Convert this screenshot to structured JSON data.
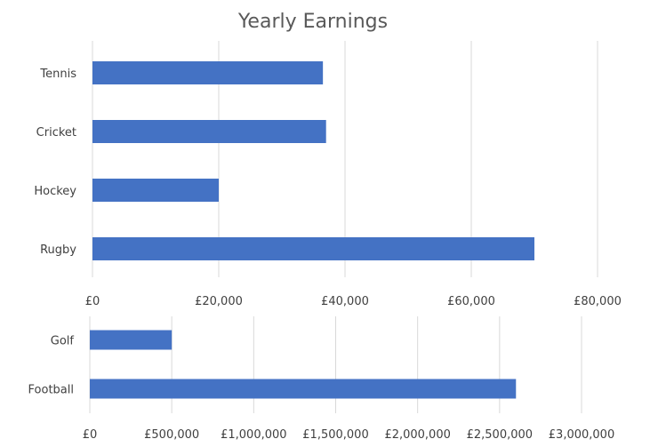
{
  "chart_data": {
    "title": "Yearly Earnings",
    "bar_color": "#4472C4",
    "grid_color": "#d9d9d9",
    "panels": [
      {
        "type": "bar",
        "orientation": "horizontal",
        "categories": [
          "Tennis",
          "Cricket",
          "Hockey",
          "Rugby"
        ],
        "values": [
          36500,
          37000,
          20000,
          70000
        ],
        "xlim": [
          0,
          80000
        ],
        "xticks": [
          0,
          20000,
          40000,
          60000,
          80000
        ],
        "xtick_labels": [
          "£0",
          "£20,000",
          "£40,000",
          "£60,000",
          "£80,000"
        ],
        "grid": true
      },
      {
        "type": "bar",
        "orientation": "horizontal",
        "categories": [
          "Golf",
          "Football"
        ],
        "values": [
          500000,
          2600000
        ],
        "xlim": [
          0,
          3000000
        ],
        "xticks": [
          0,
          500000,
          1000000,
          1500000,
          2000000,
          2500000,
          3000000
        ],
        "xtick_labels": [
          "£0",
          "£500,000",
          "£1,000,000",
          "£1,500,000",
          "£2,000,000",
          "£2,500,000",
          "£3,000,000"
        ],
        "grid": true
      }
    ]
  }
}
